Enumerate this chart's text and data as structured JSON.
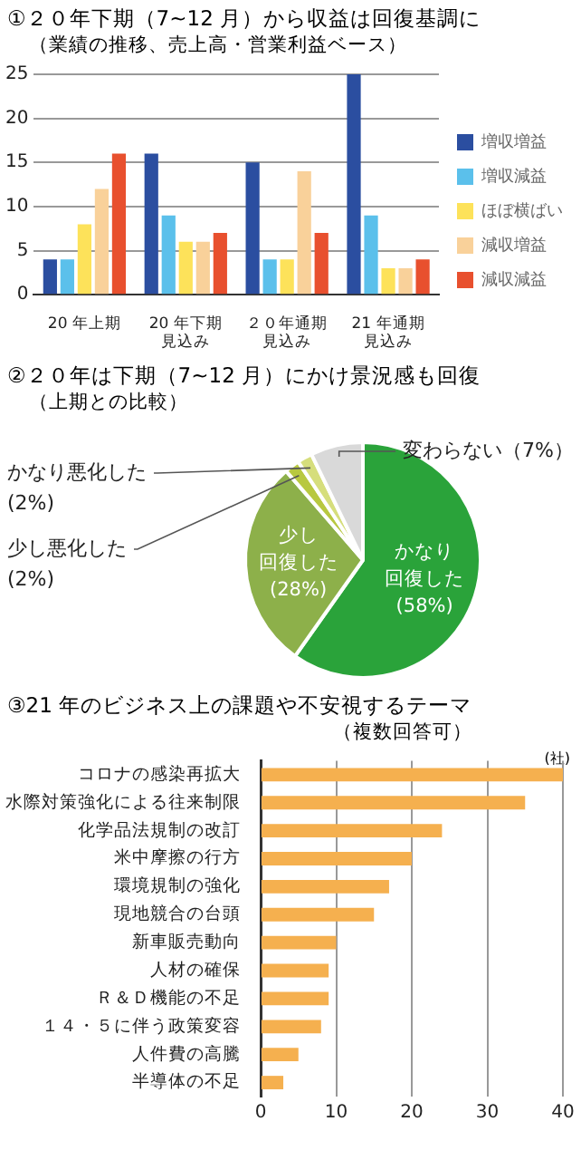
{
  "chart_data": [
    {
      "type": "bar",
      "title": "①２０年下期（7~12 月）から収益は回復基調に",
      "subtitle": "（業績の推移、売上高・営業利益ベース）",
      "categories": [
        "20 年上期",
        "20 年下期見込み",
        "２０年通期見込み",
        "21 年通期見込み"
      ],
      "series": [
        {
          "name": "増収増益",
          "color": "#2b4ea0",
          "values": [
            4,
            16,
            15,
            25
          ]
        },
        {
          "name": "増収減益",
          "color": "#5bc0eb",
          "values": [
            4,
            9,
            4,
            9
          ]
        },
        {
          "name": "ほぼ横ばい",
          "color": "#fde25a",
          "values": [
            8,
            6,
            4,
            3
          ]
        },
        {
          "name": "減収増益",
          "color": "#f9d19a",
          "values": [
            12,
            6,
            14,
            3
          ]
        },
        {
          "name": "減収減益",
          "color": "#e8502e",
          "values": [
            16,
            7,
            7,
            4
          ]
        }
      ],
      "ylim": [
        0,
        25
      ],
      "yticks": [
        0,
        5,
        10,
        15,
        20,
        25
      ],
      "grid": "y",
      "legend": "right"
    },
    {
      "type": "pie",
      "title": "②２０年は下期（7~12 月）にかけ景況感も回復",
      "subtitle": "（上期との比較）",
      "categories": [
        "かなり回復した",
        "少し回復した",
        "少し悪化した",
        "かなり悪化した",
        "変わらない"
      ],
      "values": [
        58,
        28,
        2,
        2,
        7
      ],
      "value_labels": [
        "(58%)",
        "(28%)",
        "(2%)",
        "(2%)",
        "（7%）"
      ],
      "colors": [
        "#2aa33a",
        "#8db04a",
        "#b8c840",
        "#d6de7c",
        "#d9d9d9"
      ]
    },
    {
      "type": "bar",
      "orientation": "horizontal",
      "title": "③21 年のビジネス上の課題や不安視するテーマ",
      "subtitle": "（複数回答可）",
      "xlabel": "(社)",
      "categories": [
        "コロナの感染再拡大",
        "水際対策強化による往来制限",
        "化学品法規制の改訂",
        "米中摩擦の行方",
        "環境規制の強化",
        "現地競合の台頭",
        "新車販売動向",
        "人材の確保",
        "Ｒ＆Ｄ機能の不足",
        "１４・５に伴う政策変容",
        "人件費の高騰",
        "半導体の不足"
      ],
      "values": [
        40,
        35,
        24,
        20,
        17,
        15,
        10,
        9,
        9,
        8,
        5,
        3
      ],
      "color": "#f5b04f",
      "xlim": [
        0,
        40
      ],
      "xticks": [
        0,
        10,
        20,
        30,
        40
      ],
      "grid": "x"
    }
  ]
}
